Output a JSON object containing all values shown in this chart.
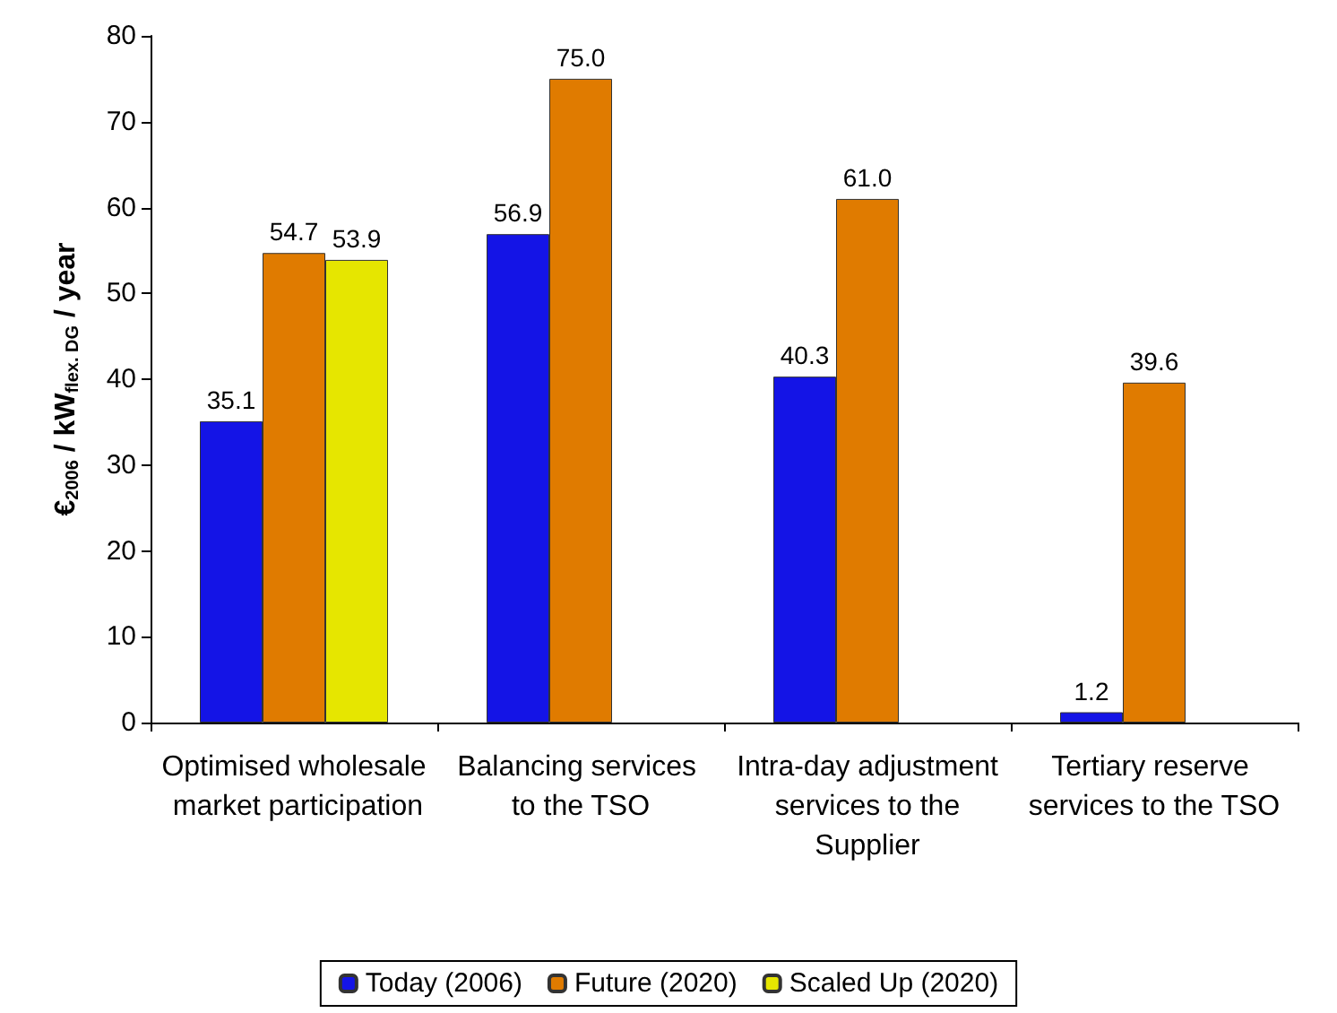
{
  "chart_data": {
    "type": "bar",
    "ylabel": "€$_{2006}$ / kW$_{flex. DG}$ / year",
    "categories": [
      "Optimised wholesale market participation",
      "Balancing services to the TSO",
      "Intra-day adjustment services to the Supplier",
      "Tertiary reserve services to the TSO"
    ],
    "series": [
      {
        "name": "Today (2006)",
        "color": "#1414e6",
        "values": [
          35.1,
          56.9,
          40.3,
          1.2
        ],
        "value_labels": [
          "35.1",
          "56.9",
          "40.3",
          "1.2"
        ]
      },
      {
        "name": "Future (2020)",
        "color": "#e07b00",
        "values": [
          54.7,
          75.0,
          61.0,
          39.6
        ],
        "value_labels": [
          "54.7",
          "75.0",
          "61.0",
          "39.6"
        ]
      },
      {
        "name": "Scaled Up (2020)",
        "color": "#e6e600",
        "values": [
          53.9,
          null,
          null,
          null
        ],
        "value_labels": [
          "53.9",
          null,
          null,
          null
        ]
      }
    ],
    "ylim": [
      0,
      80
    ],
    "yticks": [
      0,
      10,
      20,
      30,
      40,
      50,
      60,
      70,
      80
    ],
    "grid": false,
    "legend": "bottom"
  }
}
